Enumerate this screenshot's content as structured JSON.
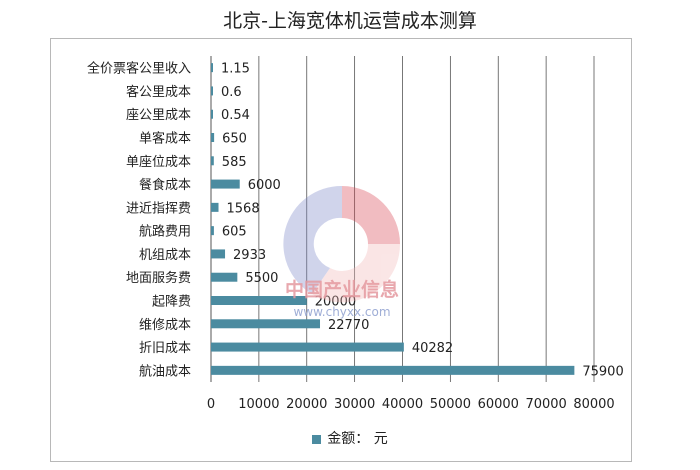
{
  "chart_data": {
    "type": "bar",
    "orientation": "horizontal",
    "title": "北京-上海宽体机运营成本测算",
    "categories": [
      "全价票客公里收入",
      "客公里成本",
      "座公里成本",
      "单客成本",
      "单座位成本",
      "餐食成本",
      "进近指挥费",
      "航路费用",
      "机组成本",
      "地面服务费",
      "起降费",
      "维修成本",
      "折旧成本",
      "航油成本"
    ],
    "series": [
      {
        "name": "金额： 元",
        "values": [
          1.15,
          0.6,
          0.54,
          650,
          585,
          6000,
          1568,
          605,
          2933,
          5500,
          20000,
          22770,
          40282,
          75900
        ],
        "labels": [
          "1.15",
          "0.6",
          "0.54",
          "650",
          "585",
          "6000",
          "1568",
          "605",
          "2933",
          "5500",
          "20000",
          "22770",
          "40282",
          "75900"
        ]
      }
    ],
    "x_ticks": [
      "0",
      "10000",
      "20000",
      "30000",
      "40000",
      "50000",
      "60000",
      "70000",
      "80000"
    ],
    "xlim": [
      0,
      80000
    ],
    "grid": "vertical",
    "legend_position": "bottom",
    "bar_color": "#4b8ba0",
    "grid_color": "#555555"
  },
  "watermark": {
    "cn": "中国产业信息",
    "url": "www.chyxx.com"
  }
}
